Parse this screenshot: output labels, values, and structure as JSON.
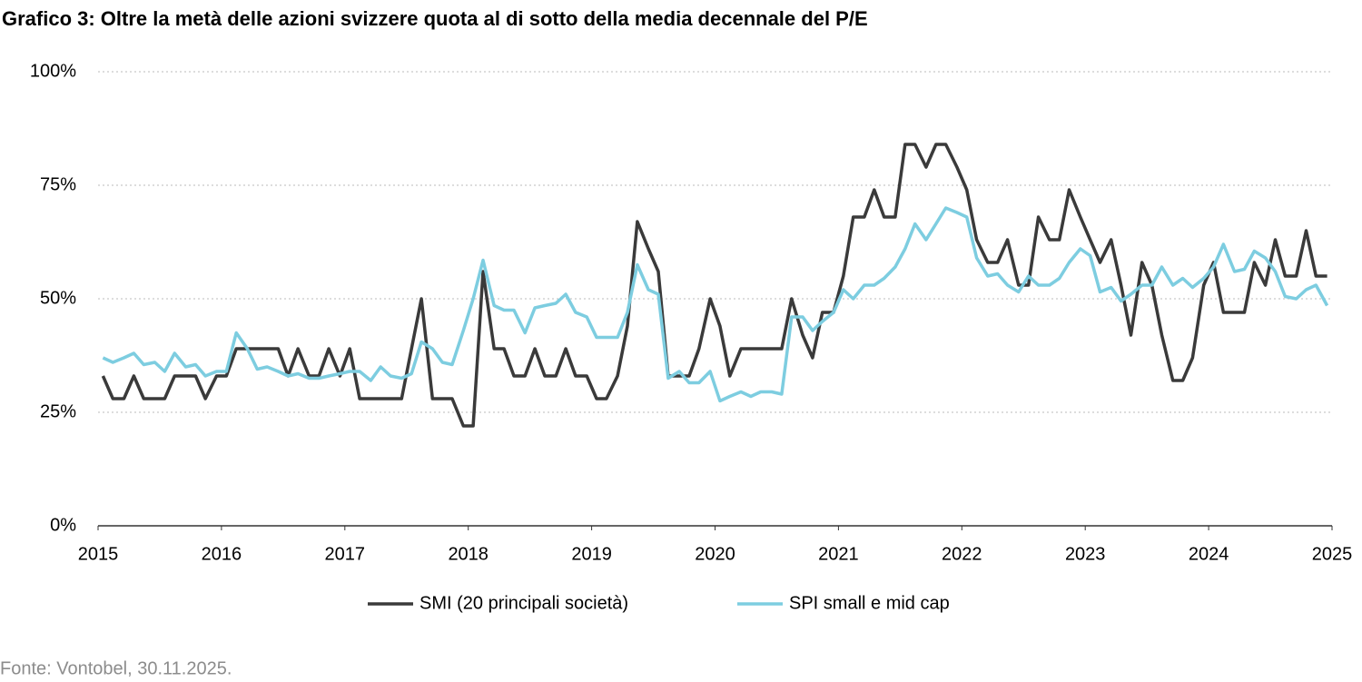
{
  "chart_data": {
    "type": "line",
    "title": "Grafico 3: Oltre la metà delle azioni svizzere quota al di sotto della media decennale del P/E",
    "source": "Fonte: Vontobel, 30.11.2025.",
    "x": [
      2015.04,
      2015.12,
      2015.21,
      2015.29,
      2015.37,
      2015.46,
      2015.54,
      2015.62,
      2015.71,
      2015.79,
      2015.87,
      2015.96,
      2016.04,
      2016.12,
      2016.21,
      2016.29,
      2016.37,
      2016.46,
      2016.54,
      2016.62,
      2016.71,
      2016.79,
      2016.87,
      2016.96,
      2017.04,
      2017.12,
      2017.21,
      2017.29,
      2017.37,
      2017.46,
      2017.54,
      2017.62,
      2017.71,
      2017.79,
      2017.87,
      2017.96,
      2018.04,
      2018.12,
      2018.21,
      2018.29,
      2018.37,
      2018.46,
      2018.54,
      2018.62,
      2018.71,
      2018.79,
      2018.87,
      2018.96,
      2019.04,
      2019.12,
      2019.21,
      2019.29,
      2019.37,
      2019.46,
      2019.54,
      2019.62,
      2019.71,
      2019.79,
      2019.87,
      2019.96,
      2020.04,
      2020.12,
      2020.21,
      2020.29,
      2020.37,
      2020.46,
      2020.54,
      2020.62,
      2020.71,
      2020.79,
      2020.87,
      2020.96,
      2021.04,
      2021.12,
      2021.21,
      2021.29,
      2021.37,
      2021.46,
      2021.54,
      2021.62,
      2021.71,
      2021.79,
      2021.87,
      2021.96,
      2022.04,
      2022.12,
      2022.21,
      2022.29,
      2022.37,
      2022.46,
      2022.54,
      2022.62,
      2022.71,
      2022.79,
      2022.87,
      2022.96,
      2023.04,
      2023.12,
      2023.21,
      2023.29,
      2023.37,
      2023.46,
      2023.54,
      2023.62,
      2023.71,
      2023.79,
      2023.87,
      2023.96,
      2024.04,
      2024.12,
      2024.21,
      2024.29,
      2024.37,
      2024.46,
      2024.54,
      2024.62,
      2024.71,
      2024.79,
      2024.87,
      2024.96
    ],
    "series": [
      {
        "name": "SMI (20 principali società)",
        "color": "#3a3a3a",
        "values": [
          33,
          28,
          28,
          33,
          28,
          28,
          28,
          33,
          33,
          33,
          28,
          33,
          33,
          39,
          39,
          39,
          39,
          39,
          33,
          39,
          33,
          33,
          39,
          33,
          39,
          28,
          28,
          28,
          28,
          28,
          39,
          50,
          28,
          28,
          28,
          22,
          22,
          56,
          39,
          39,
          33,
          33,
          39,
          33,
          33,
          39,
          33,
          33,
          28,
          28,
          33,
          44,
          67,
          61,
          56,
          33,
          33,
          33,
          39,
          50,
          44,
          33,
          39,
          39,
          39,
          39,
          39,
          50,
          42,
          37,
          47,
          47,
          55,
          68,
          68,
          74,
          68,
          68,
          84,
          84,
          79,
          84,
          84,
          79,
          74,
          63,
          58,
          58,
          63,
          53,
          53,
          68,
          63,
          63,
          74,
          68,
          63,
          58,
          63,
          53,
          42,
          58,
          53,
          42,
          32,
          32,
          37,
          53,
          58,
          47,
          47,
          47,
          58,
          53,
          63,
          55,
          55,
          65,
          55,
          55
        ]
      },
      {
        "name": "SPI small e mid cap",
        "color": "#7dcde0",
        "values": [
          37,
          36,
          37,
          38,
          35.5,
          36,
          34,
          38,
          35,
          35.5,
          33,
          34,
          34,
          42.5,
          39,
          34.5,
          35,
          34,
          33,
          33.5,
          32.5,
          32.5,
          33,
          33.5,
          34,
          34,
          32,
          35,
          33,
          32.5,
          33.5,
          40.5,
          39,
          36,
          35.5,
          43,
          50,
          58.5,
          48.5,
          47.5,
          47.5,
          42.5,
          48,
          48.5,
          49,
          51,
          47,
          46,
          41.5,
          41.5,
          41.5,
          47,
          57.5,
          52,
          51,
          32.5,
          34,
          31.5,
          31.5,
          34,
          27.5,
          28.5,
          29.5,
          28.5,
          29.5,
          29.5,
          29,
          46,
          46,
          43,
          45,
          47,
          52,
          50,
          53,
          53,
          54.5,
          57,
          61,
          66.5,
          63,
          66.5,
          70,
          69,
          68,
          59,
          55,
          55.5,
          53,
          51.5,
          55,
          53,
          53,
          54.5,
          58,
          61,
          59.5,
          51.5,
          52.5,
          49.5,
          51,
          53,
          53,
          57,
          53,
          54.5,
          52.5,
          54.5,
          57,
          62,
          56,
          56.5,
          60.5,
          59,
          56,
          50.5,
          50,
          52,
          53,
          48.5
        ]
      }
    ],
    "xlim": [
      2015,
      2025
    ],
    "xticks": [
      2015,
      2016,
      2017,
      2018,
      2019,
      2020,
      2021,
      2022,
      2023,
      2024,
      2025
    ],
    "ylim": [
      0,
      100
    ],
    "yticks": [
      {
        "value": 0,
        "label": "0%"
      },
      {
        "value": 25,
        "label": "25%"
      },
      {
        "value": 50,
        "label": "50%"
      },
      {
        "value": 75,
        "label": "75%"
      },
      {
        "value": 100,
        "label": "100%"
      }
    ],
    "grid": true
  }
}
